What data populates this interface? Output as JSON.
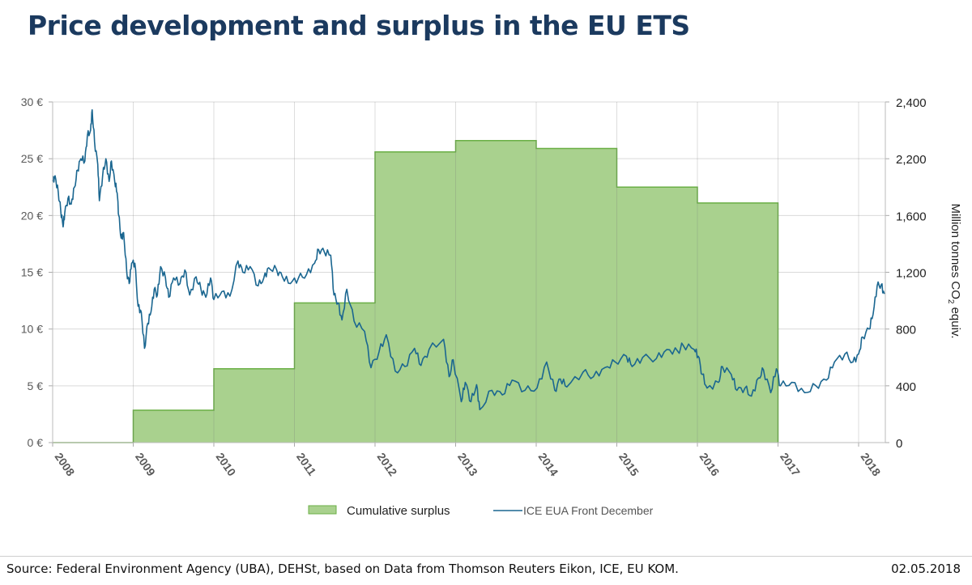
{
  "title": "Price development and surplus in the EU ETS",
  "footer": {
    "source": "Source: Federal Environment Agency (UBA), DEHSt, based on Data from Thomson Reuters Eikon, ICE, EU KOM.",
    "date": "02.05.2018"
  },
  "chart_data": {
    "type": "bar+line",
    "title": "",
    "xlabel": "",
    "ylabel_left": "",
    "ylabel_right": "Million tonnes CO₂ equiv.",
    "x_ticks": [
      "2008",
      "2009",
      "2010",
      "2011",
      "2012",
      "2013",
      "2014",
      "2015",
      "2016",
      "2017",
      "2018"
    ],
    "xlim": [
      2008.0,
      2018.33
    ],
    "y_left": {
      "lim": [
        0,
        30
      ],
      "ticks": [
        "0 €",
        "5 €",
        "10 €",
        "15 €",
        "20 €",
        "25 €",
        "30 €"
      ]
    },
    "y_right": {
      "lim": [
        0,
        2400
      ],
      "ticks": [
        "0",
        "400",
        "800",
        "1,200",
        "1,600",
        "2,200",
        "2,400"
      ]
    },
    "grid": true,
    "legend": {
      "position": "bottom",
      "entries": [
        "Cumulative surplus",
        "ICE EUA Front December"
      ]
    },
    "colors": {
      "surplus_fill": "#a9d18e",
      "surplus_edge": "#6aaf45",
      "price_line": "#1a6690",
      "grid": "#d9d9d9"
    },
    "series": [
      {
        "name": "Cumulative surplus",
        "type": "step-area",
        "axis": "right",
        "unit": "Million tonnes CO2 equiv.",
        "years": [
          2009,
          2010,
          2011,
          2012,
          2013,
          2014,
          2015,
          2016
        ],
        "values": [
          228,
          520,
          984,
          2048,
          2128,
          2072,
          1800,
          1688
        ]
      },
      {
        "name": "ICE EUA Front December",
        "type": "line",
        "axis": "left",
        "unit": "EUR",
        "x": [
          2008.0,
          2008.03,
          2008.07,
          2008.1,
          2008.13,
          2008.15,
          2008.19,
          2008.23,
          2008.27,
          2008.31,
          2008.35,
          2008.4,
          2008.43,
          2008.47,
          2008.49,
          2008.52,
          2008.56,
          2008.58,
          2008.62,
          2008.66,
          2008.7,
          2008.73,
          2008.77,
          2008.8,
          2008.82,
          2008.85,
          2008.88,
          2008.92,
          2008.95,
          2008.98,
          2009.02,
          2009.06,
          2009.1,
          2009.14,
          2009.18,
          2009.22,
          2009.26,
          2009.3,
          2009.34,
          2009.4,
          2009.44,
          2009.5,
          2009.58,
          2009.64,
          2009.7,
          2009.78,
          2009.84,
          2009.9,
          2009.96,
          2010.0,
          2010.1,
          2010.2,
          2010.3,
          2010.36,
          2010.45,
          2010.55,
          2010.62,
          2010.68,
          2010.78,
          2010.85,
          2010.95,
          2011.05,
          2011.15,
          2011.25,
          2011.3,
          2011.37,
          2011.45,
          2011.49,
          2011.54,
          2011.59,
          2011.65,
          2011.74,
          2011.87,
          2011.95,
          2012.05,
          2012.14,
          2012.25,
          2012.37,
          2012.49,
          2012.57,
          2012.67,
          2012.85,
          2012.92,
          2012.97,
          2013.07,
          2013.12,
          2013.19,
          2013.26,
          2013.3,
          2013.45,
          2013.58,
          2013.7,
          2013.86,
          2014.01,
          2014.13,
          2014.23,
          2014.3,
          2014.38,
          2014.58,
          2014.71,
          2014.85,
          2014.98,
          2015.12,
          2015.19,
          2015.32,
          2015.49,
          2015.62,
          2015.76,
          2015.82,
          2015.96,
          2016.01,
          2016.06,
          2016.12,
          2016.26,
          2016.31,
          2016.42,
          2016.49,
          2016.59,
          2016.67,
          2016.76,
          2016.82,
          2016.91,
          2016.98,
          2017.03,
          2017.17,
          2017.33,
          2017.47,
          2017.6,
          2017.7,
          2017.83,
          2017.93,
          2018.0,
          2018.05,
          2018.13,
          2018.18,
          2018.23,
          2018.28,
          2018.32
        ],
        "values": [
          23.0,
          23.5,
          22.0,
          20.5,
          19.0,
          20.2,
          21.5,
          21.0,
          22.5,
          24.0,
          25.0,
          24.8,
          27.0,
          27.5,
          29.3,
          26.5,
          24.5,
          21.3,
          23.5,
          25.0,
          23.0,
          24.8,
          23.0,
          22.0,
          20.0,
          18.0,
          18.5,
          15.0,
          14.0,
          15.8,
          15.8,
          12.0,
          11.5,
          8.3,
          10.5,
          11.5,
          13.5,
          13.0,
          15.5,
          14.5,
          12.8,
          14.5,
          14.0,
          15.2,
          13.0,
          14.6,
          13.5,
          12.8,
          14.5,
          12.6,
          13.3,
          12.9,
          16.0,
          15.0,
          15.5,
          13.8,
          14.5,
          15.4,
          15.2,
          14.6,
          14.0,
          14.5,
          14.8,
          15.8,
          17.0,
          16.8,
          16.5,
          13.0,
          12.3,
          10.8,
          13.5,
          10.7,
          9.8,
          6.6,
          8.0,
          9.5,
          6.3,
          6.7,
          8.3,
          6.8,
          8.2,
          9.1,
          5.8,
          7.3,
          3.6,
          5.3,
          3.6,
          5.1,
          2.9,
          4.6,
          4.2,
          5.5,
          4.6,
          4.8,
          7.1,
          4.6,
          5.6,
          4.9,
          6.2,
          5.8,
          6.6,
          7.1,
          7.6,
          6.7,
          7.5,
          7.4,
          8.2,
          8.0,
          8.6,
          8.2,
          7.6,
          6.0,
          4.8,
          5.3,
          6.7,
          6.0,
          4.6,
          4.8,
          4.1,
          5.7,
          6.4,
          4.4,
          6.5,
          5.0,
          5.3,
          4.4,
          5.0,
          5.5,
          7.1,
          7.8,
          7.1,
          7.8,
          9.3,
          10.0,
          11.3,
          13.8,
          13.9,
          13.1
        ]
      }
    ]
  }
}
